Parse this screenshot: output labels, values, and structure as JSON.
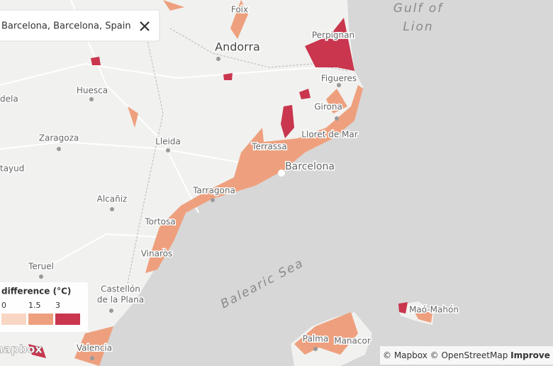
{
  "search": {
    "query": "Barcelona, Barcelona, Spain"
  },
  "places": [
    "Foix",
    "Perpignan",
    "Andorra",
    "Huesca",
    "Figueres",
    "Girona",
    "Lloret de Mar",
    "Zaragoza",
    "Lleida",
    "Terrassa",
    "Barcelona",
    "Tarragona",
    "Alcañiz",
    "Tortosa",
    "Vinaròs",
    "Teruel",
    "Castellón",
    "de la Plana",
    "Valencia",
    "Palma",
    "Manacor",
    "Maó-Mahón",
    "dela",
    "tayud"
  ],
  "water": [
    "Gulf of",
    "Lion",
    "Balearic Sea"
  ],
  "legend": {
    "title": "difference (°C)",
    "ticks": [
      0,
      1.5,
      3
    ],
    "colors": [
      "#f9d6c4",
      "#eea07e",
      "#c9364e"
    ]
  },
  "attribution": {
    "mapbox": "© Mapbox",
    "osm": "© OpenStreetMap",
    "improve": "Improve t"
  },
  "logo": "mapbox"
}
